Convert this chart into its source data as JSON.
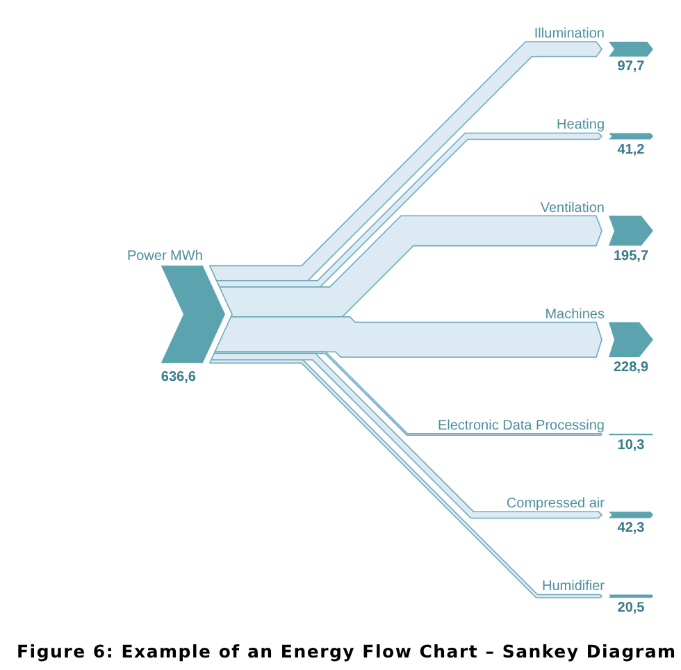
{
  "chart_data": {
    "type": "other",
    "title": "Figure 6: Example of an Energy Flow Chart – Sankey Diagram",
    "categories": [
      "Power MWh",
      "Illumination",
      "Heating",
      "Ventilation",
      "Machines",
      "Electronic Data Processing",
      "Compressed air",
      "Humidifier"
    ],
    "values": [
      636.6,
      97.7,
      41.2,
      195.7,
      228.9,
      10.3,
      42.3,
      20.5
    ],
    "value_labels": [
      "636,6",
      "97,7",
      "41,2",
      "195,7",
      "228,9",
      "10,3",
      "42,3",
      "20,5"
    ],
    "color": "#5ba4af"
  }
}
